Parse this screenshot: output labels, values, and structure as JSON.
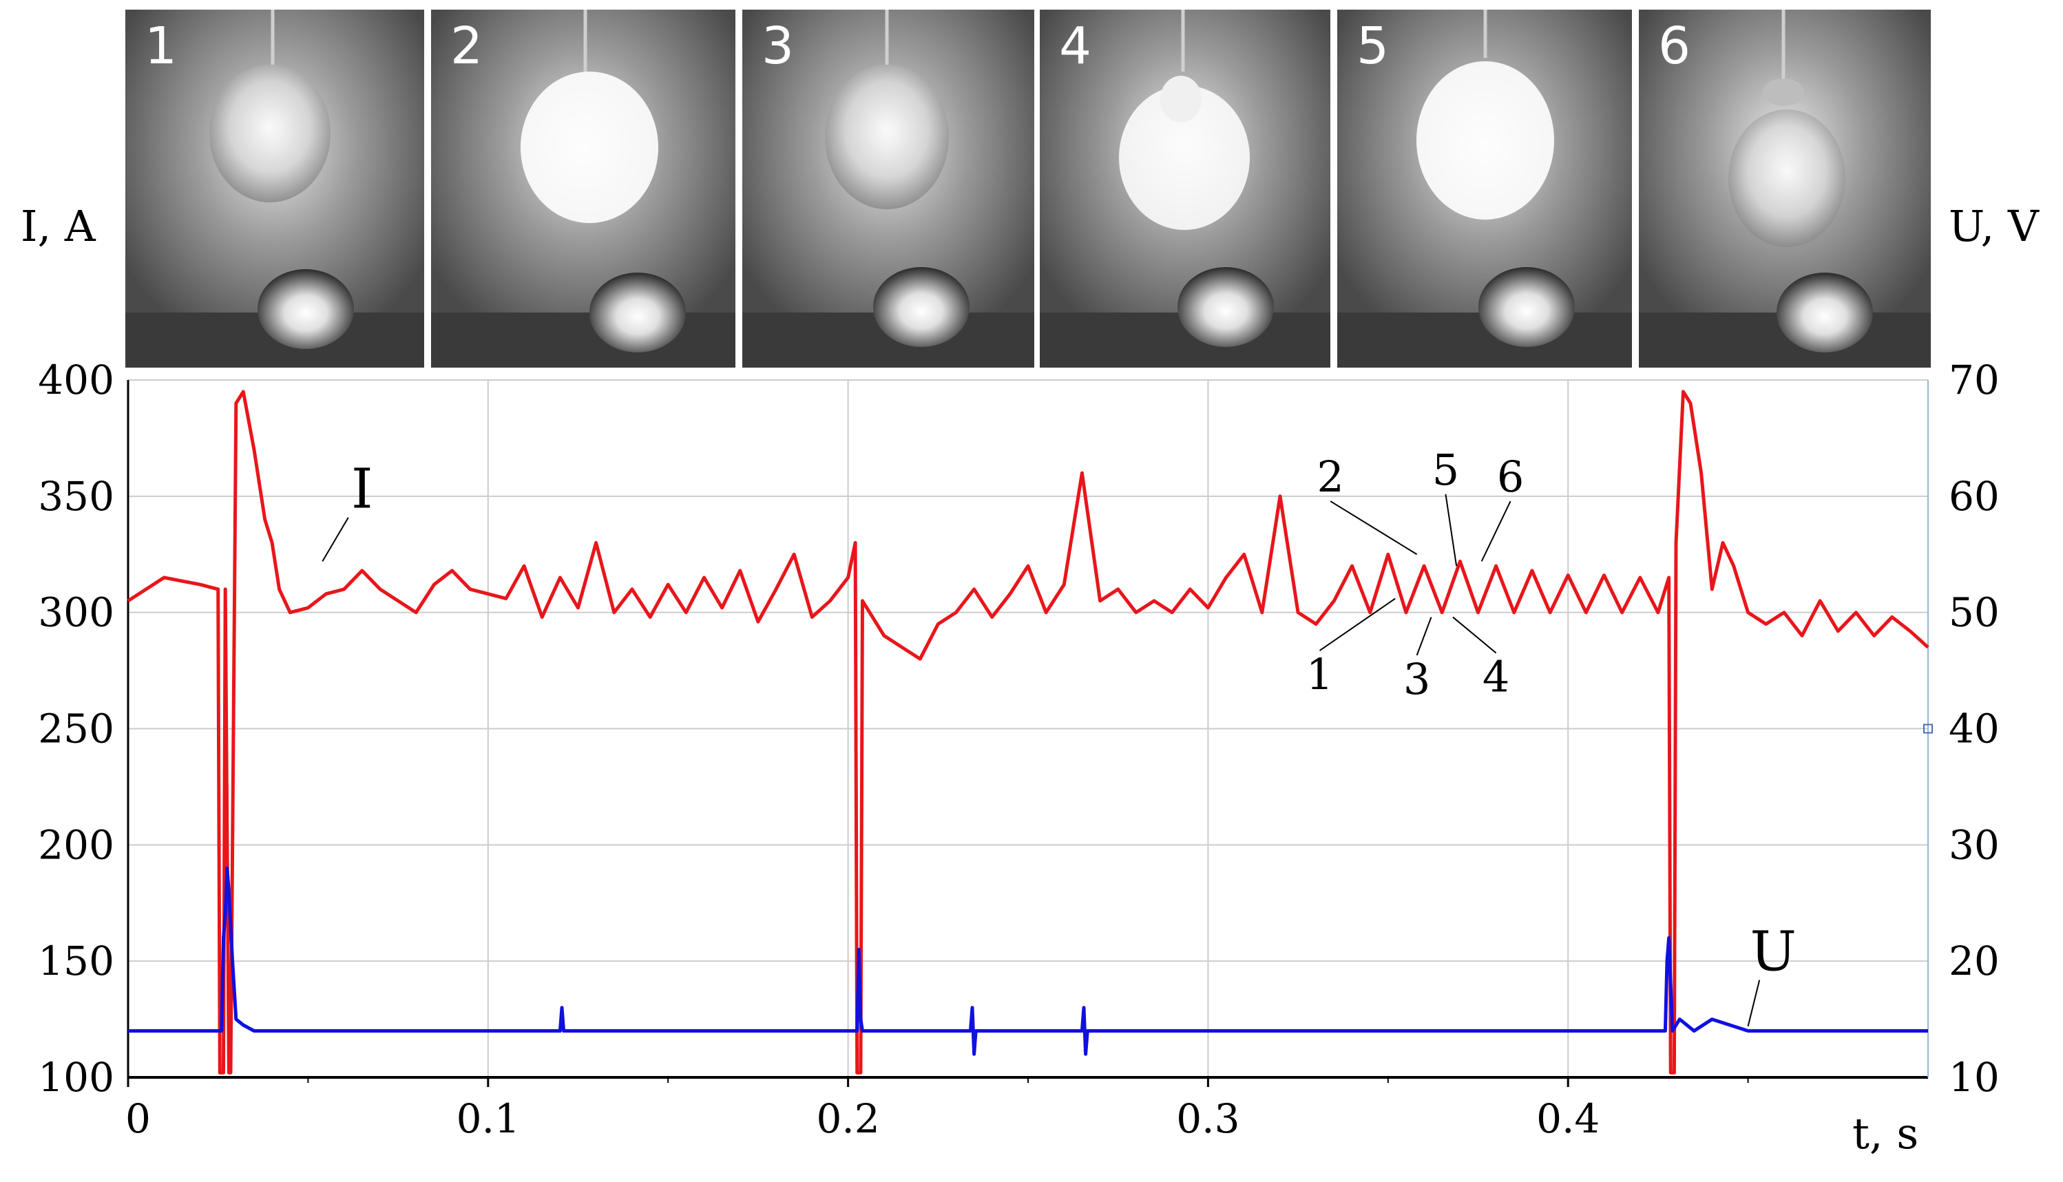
{
  "frames": [
    {
      "label": "1"
    },
    {
      "label": "2"
    },
    {
      "label": "3"
    },
    {
      "label": "4"
    },
    {
      "label": "5"
    },
    {
      "label": "6"
    }
  ],
  "colors": {
    "current": "#e8161b",
    "voltage": "#1010e0",
    "grid": "#cccccc",
    "axis": "#000000"
  },
  "chart_data": {
    "type": "line",
    "xlabel": "t, s",
    "ylabel_left": "I, A",
    "ylabel_right": "U, V",
    "xlim": [
      0,
      0.5
    ],
    "ylim_left": [
      100,
      400
    ],
    "ylim_right": [
      10,
      70
    ],
    "xticks": [
      {
        "value": 0,
        "label": "0"
      },
      {
        "value": 0.1,
        "label": "0.1"
      },
      {
        "value": 0.2,
        "label": "0.2"
      },
      {
        "value": 0.3,
        "label": "0.3"
      },
      {
        "value": 0.4,
        "label": "0.4"
      }
    ],
    "yticks_left": [
      {
        "value": 100,
        "label": "100"
      },
      {
        "value": 150,
        "label": "150"
      },
      {
        "value": 200,
        "label": "200"
      },
      {
        "value": 250,
        "label": "250"
      },
      {
        "value": 300,
        "label": "300"
      },
      {
        "value": 350,
        "label": "350"
      },
      {
        "value": 400,
        "label": "400"
      }
    ],
    "yticks_right": [
      {
        "value": 10,
        "label": "10"
      },
      {
        "value": 20,
        "label": "20"
      },
      {
        "value": 30,
        "label": "30"
      },
      {
        "value": 40,
        "label": "40"
      },
      {
        "value": 50,
        "label": "50"
      },
      {
        "value": 60,
        "label": "60"
      },
      {
        "value": 70,
        "label": "70"
      }
    ],
    "grid": true,
    "series": [
      {
        "name": "I",
        "axis": "left",
        "x": [
          0,
          0.01,
          0.02,
          0.025,
          0.0255,
          0.0265,
          0.027,
          0.028,
          0.0285,
          0.03,
          0.032,
          0.035,
          0.038,
          0.04,
          0.042,
          0.045,
          0.05,
          0.055,
          0.06,
          0.065,
          0.07,
          0.075,
          0.08,
          0.085,
          0.09,
          0.095,
          0.1,
          0.105,
          0.11,
          0.115,
          0.12,
          0.125,
          0.13,
          0.135,
          0.14,
          0.145,
          0.15,
          0.155,
          0.16,
          0.165,
          0.17,
          0.175,
          0.18,
          0.185,
          0.19,
          0.195,
          0.2,
          0.202,
          0.2025,
          0.2035,
          0.204,
          0.206,
          0.21,
          0.215,
          0.22,
          0.225,
          0.23,
          0.235,
          0.24,
          0.245,
          0.25,
          0.255,
          0.26,
          0.265,
          0.27,
          0.275,
          0.28,
          0.285,
          0.29,
          0.295,
          0.3,
          0.305,
          0.31,
          0.315,
          0.32,
          0.325,
          0.33,
          0.335,
          0.34,
          0.345,
          0.35,
          0.355,
          0.36,
          0.365,
          0.37,
          0.375,
          0.38,
          0.385,
          0.39,
          0.395,
          0.4,
          0.405,
          0.41,
          0.415,
          0.42,
          0.425,
          0.428,
          0.4285,
          0.4295,
          0.43,
          0.432,
          0.434,
          0.437,
          0.44,
          0.443,
          0.446,
          0.45,
          0.455,
          0.46,
          0.465,
          0.47,
          0.475,
          0.48,
          0.485,
          0.49,
          0.495,
          0.5
        ],
        "y": [
          305,
          315,
          312,
          310,
          102,
          102,
          310,
          102,
          102,
          390,
          395,
          370,
          340,
          330,
          310,
          300,
          302,
          308,
          310,
          318,
          310,
          305,
          300,
          312,
          318,
          310,
          308,
          306,
          320,
          298,
          315,
          302,
          330,
          300,
          310,
          298,
          312,
          300,
          315,
          302,
          318,
          296,
          310,
          325,
          298,
          305,
          315,
          330,
          102,
          102,
          305,
          300,
          290,
          285,
          280,
          295,
          300,
          310,
          298,
          308,
          320,
          300,
          312,
          360,
          305,
          310,
          300,
          305,
          300,
          310,
          302,
          315,
          325,
          300,
          350,
          300,
          295,
          305,
          320,
          300,
          325,
          300,
          320,
          300,
          322,
          300,
          320,
          300,
          318,
          300,
          316,
          300,
          316,
          300,
          315,
          300,
          315,
          102,
          102,
          330,
          395,
          390,
          360,
          310,
          330,
          320,
          300,
          295,
          300,
          290,
          305,
          292,
          300,
          290,
          298,
          292,
          285
        ]
      },
      {
        "name": "U",
        "axis": "right",
        "x": [
          0,
          0.02,
          0.026,
          0.0265,
          0.027,
          0.0275,
          0.028,
          0.029,
          0.03,
          0.032,
          0.035,
          0.1,
          0.12,
          0.1205,
          0.121,
          0.2,
          0.2025,
          0.203,
          0.2035,
          0.204,
          0.206,
          0.234,
          0.2345,
          0.235,
          0.2355,
          0.236,
          0.265,
          0.2655,
          0.266,
          0.2665,
          0.267,
          0.4,
          0.427,
          0.4275,
          0.428,
          0.4285,
          0.429,
          0.431,
          0.435,
          0.44,
          0.45,
          0.5
        ],
        "y": [
          14,
          14,
          14,
          22,
          24,
          28,
          26,
          20,
          15,
          14.5,
          14,
          14,
          14,
          16,
          14,
          14,
          14,
          21,
          15,
          14,
          14,
          14,
          16,
          12,
          14,
          14,
          14,
          16,
          12,
          14,
          14,
          14,
          14,
          20,
          22,
          18,
          14,
          15,
          14,
          15,
          14,
          14
        ]
      }
    ],
    "annotations": [
      {
        "text": "I",
        "x": 0.065,
        "y": 345
      },
      {
        "text": "U",
        "x": 0.457,
        "y": 146
      },
      {
        "text": "1",
        "x": 0.331,
        "y": 267
      },
      {
        "text": "2",
        "x": 0.334,
        "y": 352
      },
      {
        "text": "3",
        "x": 0.358,
        "y": 265
      },
      {
        "text": "4",
        "x": 0.38,
        "y": 266
      },
      {
        "text": "5",
        "x": 0.366,
        "y": 355
      },
      {
        "text": "6",
        "x": 0.384,
        "y": 352
      }
    ]
  }
}
